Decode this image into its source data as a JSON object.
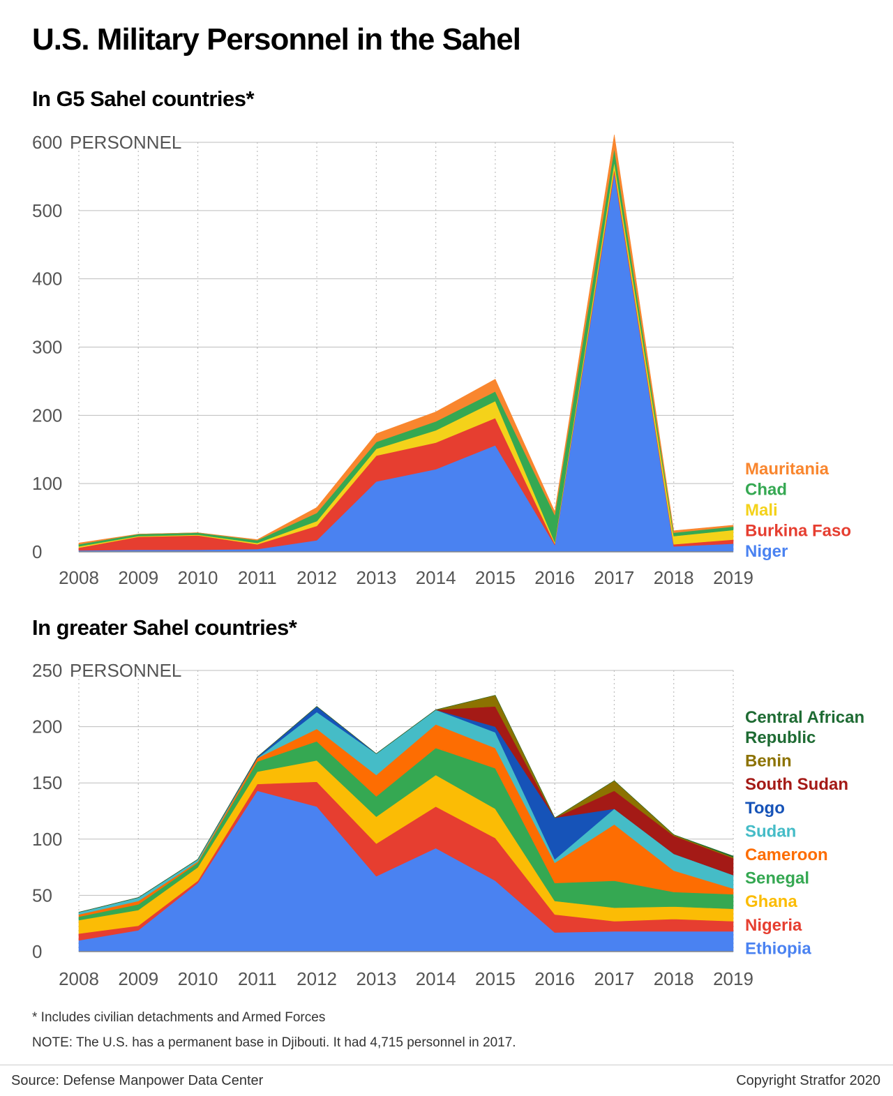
{
  "title": "U.S. Military Personnel in the Sahel",
  "chart_data": [
    {
      "type": "area",
      "stacked": true,
      "title": "In G5 Sahel countries*",
      "ylabel": "PERSONNEL",
      "ylim": [
        0,
        600
      ],
      "yticks": [
        0,
        100,
        200,
        300,
        400,
        500,
        600
      ],
      "grid": true,
      "legend_position": "right",
      "x": [
        "2008",
        "2009",
        "2010",
        "2011",
        "2012",
        "2013",
        "2014",
        "2015",
        "2016",
        "2017",
        "2018",
        "2019"
      ],
      "series": [
        {
          "name": "Niger",
          "color": "#4a82f1",
          "values": [
            2,
            3,
            3,
            4,
            17,
            103,
            121,
            156,
            10,
            555,
            8,
            12
          ]
        },
        {
          "name": "Burkina Faso",
          "color": "#e63e30",
          "values": [
            4,
            19,
            21,
            7,
            21,
            38,
            39,
            40,
            2,
            6,
            3,
            6
          ]
        },
        {
          "name": "Mali",
          "color": "#f4d21a",
          "values": [
            2,
            1,
            1,
            2,
            7,
            10,
            18,
            25,
            2,
            10,
            12,
            14
          ]
        },
        {
          "name": "Chad",
          "color": "#35a852",
          "values": [
            3,
            3,
            3,
            4,
            12,
            10,
            13,
            14,
            40,
            20,
            5,
            5
          ]
        },
        {
          "name": "Mauritania",
          "color": "#f9862e",
          "values": [
            2,
            0,
            0,
            1,
            8,
            12,
            14,
            18,
            5,
            20,
            3,
            2
          ]
        }
      ],
      "legend_order": [
        "Mauritania",
        "Chad",
        "Mali",
        "Burkina Faso",
        "Niger"
      ]
    },
    {
      "type": "area",
      "stacked": true,
      "title": "In greater Sahel countries*",
      "ylabel": "PERSONNEL",
      "ylim": [
        0,
        250
      ],
      "yticks": [
        0,
        50,
        100,
        150,
        200,
        250
      ],
      "grid": true,
      "legend_position": "right",
      "x": [
        "2008",
        "2009",
        "2010",
        "2011",
        "2012",
        "2013",
        "2014",
        "2015",
        "2016",
        "2017",
        "2018",
        "2019"
      ],
      "series": [
        {
          "name": "Ethiopia",
          "color": "#4a82f1",
          "values": [
            10,
            19,
            61,
            143,
            129,
            67,
            92,
            63,
            17,
            18,
            18,
            18
          ]
        },
        {
          "name": "Nigeria",
          "color": "#e63e30",
          "values": [
            6,
            4,
            2,
            6,
            22,
            29,
            37,
            38,
            16,
            9,
            11,
            9
          ]
        },
        {
          "name": "Ghana",
          "color": "#fbbc05",
          "values": [
            12,
            14,
            12,
            11,
            19,
            24,
            28,
            26,
            12,
            12,
            11,
            11
          ]
        },
        {
          "name": "Senegal",
          "color": "#35a852",
          "values": [
            3,
            5,
            4,
            9,
            17,
            18,
            24,
            36,
            16,
            24,
            13,
            13
          ]
        },
        {
          "name": "Cameroon",
          "color": "#fd6d02",
          "values": [
            2,
            3,
            1,
            3,
            11,
            19,
            21,
            18,
            18,
            50,
            19,
            5
          ]
        },
        {
          "name": "Sudan",
          "color": "#45bcc7",
          "values": [
            2,
            3,
            2,
            0,
            15,
            19,
            13,
            14,
            3,
            14,
            15,
            12
          ]
        },
        {
          "name": "Togo",
          "color": "#1653b8",
          "values": [
            0,
            0,
            0,
            1,
            5,
            0,
            0,
            5,
            37,
            0,
            0,
            0
          ]
        },
        {
          "name": "South Sudan",
          "color": "#a41a16",
          "values": [
            0,
            0,
            0,
            0,
            0,
            0,
            0,
            18,
            0,
            16,
            16,
            15
          ]
        },
        {
          "name": "Benin",
          "color": "#8c7201",
          "values": [
            0,
            0,
            0,
            0,
            0,
            0,
            0,
            10,
            0,
            9,
            1,
            1
          ]
        },
        {
          "name": "Central African Republic",
          "color": "#1e6b33",
          "values": [
            0,
            0,
            0,
            0,
            0,
            0,
            0,
            0,
            0,
            0,
            0,
            1
          ]
        }
      ],
      "legend_order": [
        "Central African Republic",
        "Benin",
        "South Sudan",
        "Togo",
        "Sudan",
        "Cameroon",
        "Senegal",
        "Ghana",
        "Nigeria",
        "Ethiopia"
      ],
      "legend_labels": {
        "Central African Republic": [
          "Central African",
          "Republic"
        ]
      }
    }
  ],
  "footnotes": [
    "* Includes civilian detachments and Armed Forces",
    "NOTE: The U.S. has a permanent base in Djibouti. It had 4,715 personnel in 2017."
  ],
  "source": "Source: Defense Manpower Data Center",
  "copyright": "Copyright Stratfor 2020"
}
